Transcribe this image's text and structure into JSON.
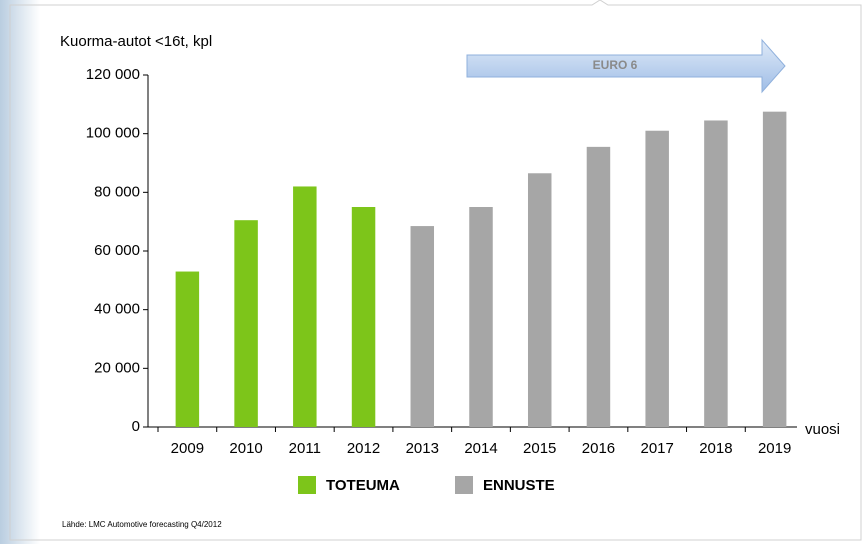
{
  "chart_data": {
    "type": "bar",
    "title": "Kuorma-autot <16t, kpl",
    "x_label": "vuosi",
    "annotation": "EURO 6",
    "source": "Lähde: LMC Automotive forecasting Q4/2012",
    "categories": [
      "2009",
      "2010",
      "2011",
      "2012",
      "2013",
      "2014",
      "2015",
      "2016",
      "2017",
      "2018",
      "2019"
    ],
    "series": [
      {
        "name": "TOTEUMA",
        "color": "#7dc51a",
        "values": [
          53000,
          70500,
          82000,
          75000,
          null,
          null,
          null,
          null,
          null,
          null,
          null
        ]
      },
      {
        "name": "ENNUSTE",
        "color": "#a6a6a6",
        "values": [
          null,
          null,
          null,
          null,
          68500,
          75000,
          86500,
          95500,
          101000,
          104500,
          107500
        ]
      }
    ],
    "ylim": [
      0,
      120000
    ],
    "yticks": [
      {
        "value": 0,
        "label": "0"
      },
      {
        "value": 20000,
        "label": "20 000"
      },
      {
        "value": 40000,
        "label": "40 000"
      },
      {
        "value": 60000,
        "label": "60 000"
      },
      {
        "value": 80000,
        "label": "80 000"
      },
      {
        "value": 100000,
        "label": "100 000"
      },
      {
        "value": 120000,
        "label": "120 000"
      }
    ],
    "grid": false
  }
}
